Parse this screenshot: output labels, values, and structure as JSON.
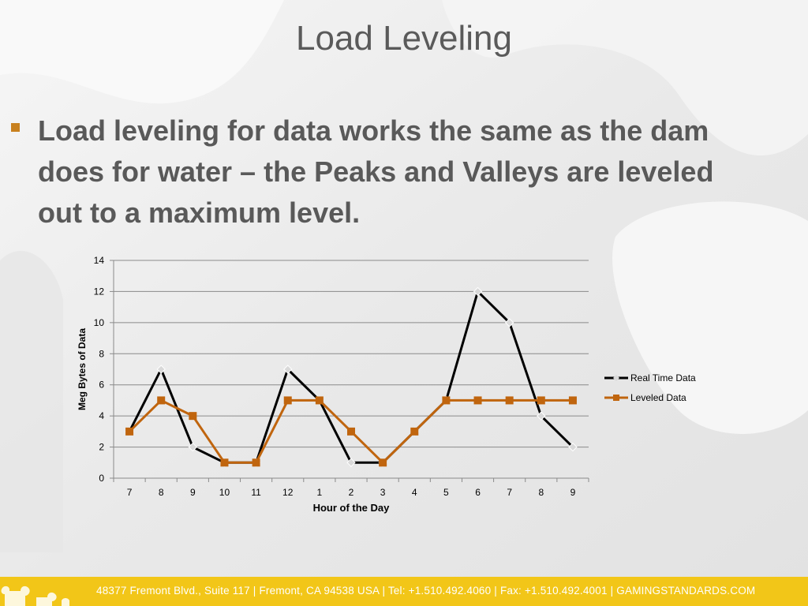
{
  "slide": {
    "title": "Load Leveling",
    "bullet": "Load leveling for data works the same as the dam does for water – the Peaks and Valleys are leveled out to a maximum level."
  },
  "colors": {
    "accent": "#c8801e",
    "footer": "#f2c618",
    "real_time": "#000000",
    "leveled": "#c0650e"
  },
  "chart_data": {
    "type": "line",
    "title": "",
    "xlabel": "Hour of the Day",
    "ylabel": "Meg Bytes of Data",
    "categories": [
      "7",
      "8",
      "9",
      "10",
      "11",
      "12",
      "1",
      "2",
      "3",
      "4",
      "5",
      "6",
      "7",
      "8",
      "9"
    ],
    "ylim": [
      0,
      14
    ],
    "yticks": [
      0,
      2,
      4,
      6,
      8,
      10,
      12,
      14
    ],
    "grid": true,
    "legend_position": "right",
    "series": [
      {
        "name": "Real Time Data",
        "color": "#000000",
        "marker": "diamond",
        "values": [
          3,
          7,
          2,
          1,
          1,
          7,
          5,
          1,
          1,
          3,
          5,
          12,
          10,
          4,
          2
        ]
      },
      {
        "name": "Leveled Data",
        "color": "#c0650e",
        "marker": "square",
        "values": [
          3,
          5,
          4,
          1,
          1,
          5,
          5,
          3,
          1,
          3,
          5,
          5,
          5,
          5,
          5
        ]
      }
    ]
  },
  "footer": {
    "text": "48377 Fremont Blvd., Suite 117  |  Fremont, CA 94538  USA  |  Tel: +1.510.492.4060  |  Fax: +1.510.492.4001 | GAMINGSTANDARDS.COM"
  }
}
